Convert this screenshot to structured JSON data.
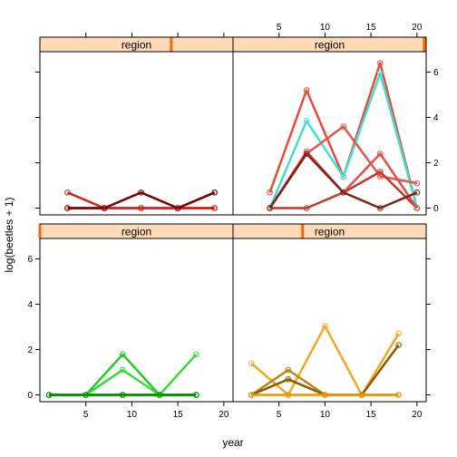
{
  "chart_data": {
    "type": "line",
    "xlabel": "year",
    "ylabel": "log(beetles + 1)",
    "xlim": [
      0,
      21
    ],
    "ylim": [
      -0.3,
      6.9
    ],
    "x_ticks": [
      5,
      10,
      15,
      20
    ],
    "y_ticks": [
      0,
      2,
      4,
      6
    ],
    "strip_label": "region",
    "grid": false,
    "legend": "none",
    "panels": [
      {
        "position": "top-left",
        "strip_level": 0.68,
        "series": [
          {
            "color": "#D50000",
            "x": [
              3,
              7,
              11,
              15,
              19
            ],
            "y": [
              0.0,
              0.0,
              0.0,
              0.0,
              0.0
            ]
          },
          {
            "color": "#C62828",
            "x": [
              3,
              7,
              11,
              15,
              19
            ],
            "y": [
              0.69,
              0.0,
              0.0,
              0.0,
              0.69
            ]
          },
          {
            "color": "#7B0000",
            "x": [
              3,
              7,
              11,
              15,
              19
            ],
            "y": [
              0.0,
              0.0,
              0.69,
              0.0,
              0.69
            ]
          }
        ]
      },
      {
        "position": "top-right",
        "strip_level": 0.99,
        "series": [
          {
            "color": "#E74C3C",
            "x": [
              4,
              8,
              12,
              16,
              20
            ],
            "y": [
              0.69,
              5.2,
              1.39,
              6.4,
              0.0
            ]
          },
          {
            "color": "#40E0D0",
            "x": [
              4,
              8,
              12,
              16,
              20
            ],
            "y": [
              0.0,
              3.85,
              1.39,
              5.95,
              0.0
            ]
          },
          {
            "color": "#E2564A",
            "x": [
              4,
              8,
              12,
              16,
              20
            ],
            "y": [
              0.0,
              2.4,
              3.6,
              1.4,
              1.1
            ]
          },
          {
            "color": "#C0392B",
            "x": [
              4,
              8,
              12,
              16,
              20
            ],
            "y": [
              0.0,
              0.0,
              0.69,
              1.6,
              0.0
            ]
          },
          {
            "color": "#D9534F",
            "x": [
              4,
              8,
              12,
              16,
              20
            ],
            "y": [
              0.0,
              2.5,
              0.69,
              2.4,
              0.0
            ]
          },
          {
            "color": "#7B241C",
            "x": [
              4,
              8,
              12,
              16,
              20
            ],
            "y": [
              0.0,
              2.4,
              0.69,
              0.0,
              0.69
            ]
          }
        ]
      },
      {
        "position": "bottom-left",
        "strip_level": 0.0,
        "series": [
          {
            "color": "#00A000",
            "x": [
              1,
              5,
              9,
              13,
              17
            ],
            "y": [
              0.0,
              0.0,
              0.0,
              0.0,
              0.0
            ]
          },
          {
            "color": "#22CC22",
            "x": [
              1,
              5,
              9,
              13,
              17
            ],
            "y": [
              0.0,
              0.0,
              1.79,
              0.0,
              0.0
            ]
          },
          {
            "color": "#33DD33",
            "x": [
              1,
              5,
              9,
              13,
              17
            ],
            "y": [
              0.0,
              0.0,
              1.1,
              0.0,
              1.79
            ]
          },
          {
            "color": "#008800",
            "x": [
              1,
              5,
              9,
              13,
              17
            ],
            "y": [
              0.0,
              0.0,
              0.0,
              0.0,
              0.0
            ]
          }
        ]
      },
      {
        "position": "bottom-right",
        "strip_level": 0.36,
        "series": [
          {
            "color": "#F5A623",
            "x": [
              2,
              6,
              10,
              14,
              18
            ],
            "y": [
              1.39,
              0.0,
              3.04,
              0.0,
              2.71
            ]
          },
          {
            "color": "#B8860B",
            "x": [
              2,
              6,
              10,
              14,
              18
            ],
            "y": [
              0.0,
              1.1,
              0.0,
              0.0,
              0.0
            ]
          },
          {
            "color": "#8B5A00",
            "x": [
              2,
              6,
              10,
              14,
              18
            ],
            "y": [
              0.0,
              0.69,
              0.0,
              0.0,
              2.2
            ]
          },
          {
            "color": "#E69500",
            "x": [
              2,
              6,
              10,
              14,
              18
            ],
            "y": [
              0.0,
              0.0,
              0.0,
              0.0,
              0.0
            ]
          }
        ]
      }
    ]
  },
  "colors": {
    "strip_background": "#FFDAB9",
    "strip_marker": "#FF6600",
    "frame": "#000000"
  }
}
